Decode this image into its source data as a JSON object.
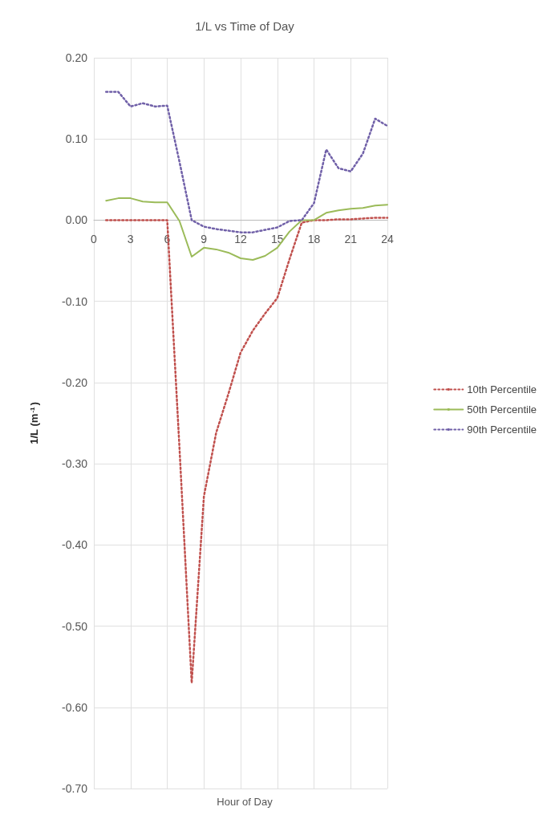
{
  "chart_data": {
    "type": "line",
    "title": "1/L vs Time of Day",
    "xlabel": "Hour of Day",
    "ylabel": "1/L (m$^{-1}$)",
    "x": [
      1,
      2,
      3,
      4,
      5,
      6,
      7,
      8,
      9,
      10,
      11,
      12,
      13,
      14,
      15,
      16,
      17,
      18,
      19,
      20,
      21,
      22,
      23,
      24
    ],
    "series": [
      {
        "name": "10th Percentile",
        "color": "#c0504d",
        "line_style": "dotted",
        "values": [
          0,
          0,
          0,
          0,
          0,
          0,
          -0.28,
          -0.57,
          -0.34,
          -0.262,
          -0.214,
          -0.163,
          -0.136,
          -0.115,
          -0.096,
          -0.048,
          -0.003,
          0,
          0,
          0.001,
          0.001,
          0.002,
          0.003,
          0.003
        ]
      },
      {
        "name": "50th Percentile",
        "color": "#9bbb59",
        "line_style": "solid",
        "values": [
          0.024,
          0.027,
          0.027,
          0.023,
          0.022,
          0.022,
          -0.001,
          -0.045,
          -0.034,
          -0.036,
          -0.04,
          -0.047,
          -0.049,
          -0.044,
          -0.034,
          -0.014,
          0,
          0,
          0.009,
          0.012,
          0.014,
          0.015,
          0.018,
          0.019
        ]
      },
      {
        "name": "90th Percentile",
        "color": "#7060a8",
        "line_style": "dotted",
        "values": [
          0.158,
          0.158,
          0.14,
          0.144,
          0.14,
          0.141,
          0.072,
          0,
          -0.008,
          -0.011,
          -0.013,
          -0.015,
          -0.015,
          -0.012,
          -0.009,
          -0.001,
          0,
          0.021,
          0.087,
          0.064,
          0.06,
          0.082,
          0.125,
          0.116
        ]
      }
    ],
    "xlim": [
      0,
      24
    ],
    "xticks": [
      0,
      3,
      6,
      9,
      12,
      15,
      18,
      21,
      24
    ],
    "ylim": [
      -0.7,
      0.2
    ],
    "yticks": [
      {
        "value": -0.7,
        "label": "-0.70"
      },
      {
        "value": -0.6,
        "label": "-0.60"
      },
      {
        "value": -0.5,
        "label": "-0.50"
      },
      {
        "value": -0.4,
        "label": "-0.40"
      },
      {
        "value": -0.3,
        "label": "-0.30"
      },
      {
        "value": -0.2,
        "label": "-0.20"
      },
      {
        "value": -0.1,
        "label": "-0.10"
      },
      {
        "value": 0,
        "label": "0.00"
      },
      {
        "value": 0.1,
        "label": "0.10"
      },
      {
        "value": 0.2,
        "label": "0.20"
      }
    ],
    "grid": true,
    "legend": "right",
    "marker": "none"
  }
}
